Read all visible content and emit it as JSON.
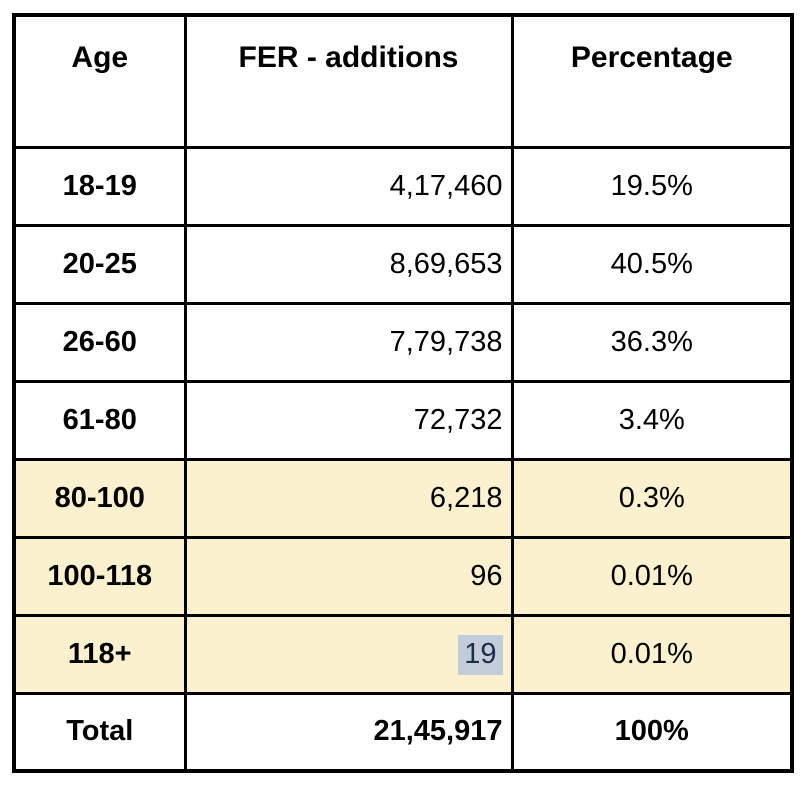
{
  "chart_data": {
    "type": "table",
    "title": "",
    "columns": [
      "Age",
      "FER - additions",
      "Percentage"
    ],
    "rows": [
      [
        "18-19",
        "4,17,460",
        "19.5%"
      ],
      [
        "20-25",
        "8,69,653",
        "40.5%"
      ],
      [
        "26-60",
        "7,79,738",
        "36.3%"
      ],
      [
        "61-80",
        "72,732",
        "3.4%"
      ],
      [
        "80-100",
        "6,218",
        "0.3%"
      ],
      [
        "100-118",
        "96",
        "0.01%"
      ],
      [
        "118+",
        "19",
        "0.01%"
      ],
      [
        "Total",
        "21,45,917",
        "100%"
      ]
    ],
    "highlighted_rows": [
      "80-100",
      "100-118",
      "118+"
    ],
    "selected_cell": {
      "row": "118+",
      "column": "FER - additions",
      "value": "19"
    },
    "colors": {
      "row_highlight_bg": "#FBF1CE",
      "selection_bg": "#C3CDD9",
      "selection_text": "#1C2B4E",
      "border": "#000000",
      "background": "#FFFFFF"
    }
  }
}
